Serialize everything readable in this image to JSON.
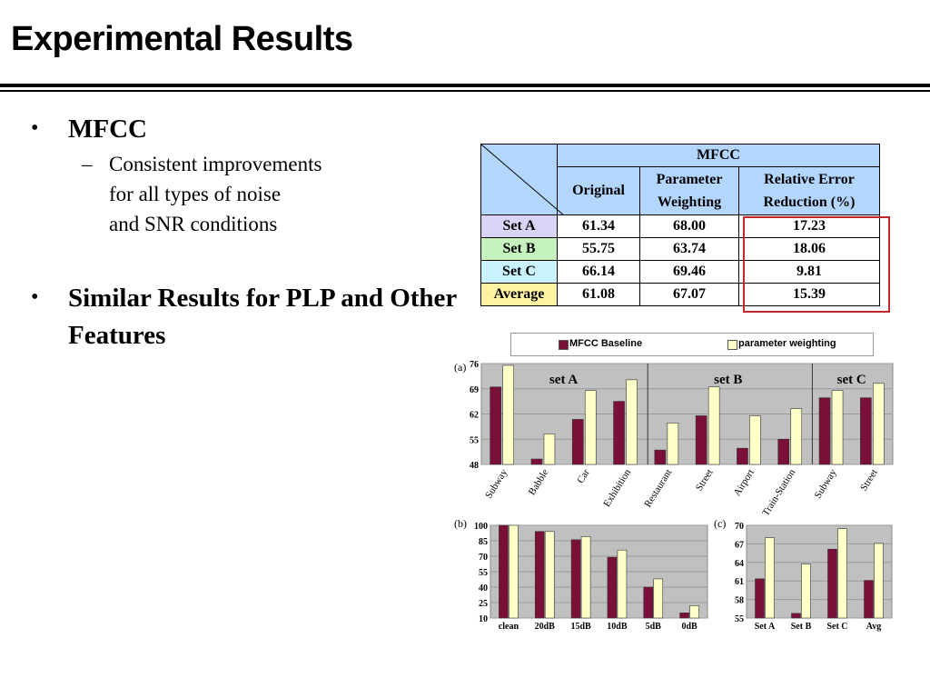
{
  "slide": {
    "title": "Experimental Results",
    "bullets": [
      {
        "text": "MFCC",
        "sub": "Consistent improvements\nfor all types of noise\nand SNR conditions"
      },
      {
        "text": "Similar Results for PLP and Other Features"
      }
    ],
    "bullet_glyph": "•",
    "dash_glyph": "–"
  },
  "table": {
    "group_header": "MFCC",
    "columns": [
      "Original",
      "Parameter Weighting",
      "Relative Error Reduction (%)"
    ],
    "rows": [
      {
        "label": "Set A",
        "original": "61.34",
        "weighting": "68.00",
        "reduction": "17.23"
      },
      {
        "label": "Set B",
        "original": "55.75",
        "weighting": "63.74",
        "reduction": "18.06"
      },
      {
        "label": "Set C",
        "original": "66.14",
        "weighting": "69.46",
        "reduction": "9.81"
      },
      {
        "label": "Average",
        "original": "61.08",
        "weighting": "67.07",
        "reduction": "15.39"
      }
    ],
    "colors": {
      "header": "#b3d6ff",
      "set_a": "#d9d3f5",
      "set_b": "#c6f2c0",
      "set_c": "#c9f3ff",
      "average": "#fff3a3",
      "highlight_box": "#c0272d"
    }
  },
  "legend": {
    "baseline": "MFCC Baseline",
    "weighting": "parameter weighting"
  },
  "chart_data": [
    {
      "type": "bar",
      "panel_label": "(a)",
      "group_labels": [
        "set A",
        "set B",
        "set C"
      ],
      "categories": [
        "Subway",
        "Babble",
        "Car",
        "Exhibition",
        "Restaurant",
        "Street",
        "Airport",
        "Train-Station",
        "Subway",
        "Street"
      ],
      "series": [
        {
          "name": "MFCC Baseline",
          "values": [
            69.5,
            49.5,
            60.5,
            65.5,
            52,
            61.5,
            52.5,
            55,
            66.5,
            66.5
          ]
        },
        {
          "name": "parameter weighting",
          "values": [
            75.5,
            56.5,
            68.5,
            71.5,
            59.5,
            69.5,
            61.5,
            63.5,
            68.5,
            70.5
          ]
        }
      ],
      "yticks": [
        48,
        55,
        62,
        69,
        76
      ],
      "ylim": [
        48,
        76
      ],
      "colors": {
        "baseline": "#7a0f3a",
        "weighting": "#ffffc8",
        "plot_bg": "#c0c0c0"
      }
    },
    {
      "type": "bar",
      "panel_label": "(b)",
      "categories": [
        "clean",
        "20dB",
        "15dB",
        "10dB",
        "5dB",
        "0dB"
      ],
      "series": [
        {
          "name": "MFCC Baseline",
          "values": [
            100,
            94,
            86,
            69,
            40,
            15
          ]
        },
        {
          "name": "parameter weighting",
          "values": [
            100,
            94,
            89,
            76,
            48,
            22
          ]
        }
      ],
      "yticks": [
        10,
        25,
        40,
        55,
        70,
        85,
        100
      ],
      "ylim": [
        10,
        100
      ],
      "colors": {
        "baseline": "#7a0f3a",
        "weighting": "#ffffc8",
        "plot_bg": "#c0c0c0"
      }
    },
    {
      "type": "bar",
      "panel_label": "(c)",
      "categories": [
        "Set A",
        "Set B",
        "Set C",
        "Avg"
      ],
      "series": [
        {
          "name": "MFCC Baseline",
          "values": [
            61.34,
            55.75,
            66.14,
            61.08
          ]
        },
        {
          "name": "parameter weighting",
          "values": [
            68.0,
            63.74,
            69.46,
            67.07
          ]
        }
      ],
      "yticks": [
        55,
        58,
        61,
        64,
        67,
        70
      ],
      "ylim": [
        55,
        70
      ],
      "colors": {
        "baseline": "#7a0f3a",
        "weighting": "#ffffc8",
        "plot_bg": "#c0c0c0"
      }
    }
  ]
}
